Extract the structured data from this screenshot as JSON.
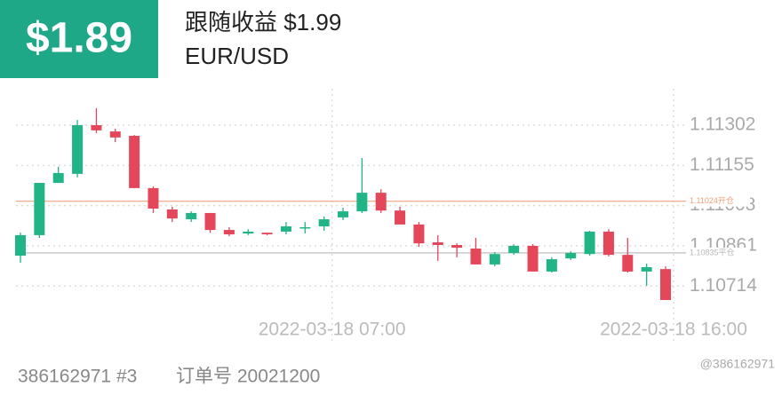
{
  "header": {
    "badge": "$1.89",
    "title": "跟随收益 $1.99",
    "pair": "EUR/USD"
  },
  "chart_data": {
    "type": "candlestick",
    "categories": [
      null,
      null,
      null,
      null,
      null,
      null,
      null,
      null,
      null,
      null,
      null,
      null,
      null,
      null,
      null,
      null,
      "2022-03-18 07:00",
      null,
      null,
      null,
      null,
      null,
      null,
      null,
      null,
      null,
      null,
      null,
      null,
      null,
      null,
      null,
      null,
      null,
      "2022-03-18 16:00"
    ],
    "open": [
      1.10825,
      1.109,
      1.11091,
      1.11124,
      1.11302,
      1.11279,
      1.11263,
      1.11072,
      1.10994,
      1.10958,
      1.10981,
      1.10919,
      1.10906,
      1.10909,
      1.10913,
      1.10926,
      1.10932,
      1.10965,
      1.10987,
      1.11055,
      1.1099,
      1.10939,
      1.10874,
      1.10864,
      1.10851,
      1.10793,
      1.10835,
      1.10861,
      1.10767,
      1.10815,
      1.10831,
      1.10913,
      1.10828,
      1.10767,
      1.10776
    ],
    "high": [
      1.10909,
      1.11091,
      1.1115,
      1.11321,
      1.11364,
      1.11289,
      1.11266,
      1.11078,
      1.11004,
      1.10987,
      1.10981,
      1.10929,
      1.10922,
      1.10909,
      1.10948,
      1.10948,
      1.10968,
      1.11,
      1.11182,
      1.11068,
      1.11004,
      1.10948,
      1.109,
      1.1087,
      1.1089,
      1.10838,
      1.10867,
      1.10867,
      1.10819,
      1.10841,
      1.10916,
      1.10922,
      1.1089,
      1.10796,
      1.10786
    ],
    "low": [
      1.10799,
      1.1089,
      1.11091,
      1.11111,
      1.11273,
      1.1124,
      1.11072,
      1.10981,
      1.10948,
      1.10948,
      1.10909,
      1.10896,
      1.109,
      1.109,
      1.10903,
      1.10906,
      1.10916,
      1.10955,
      1.10981,
      1.10981,
      1.10939,
      1.10857,
      1.10806,
      1.10819,
      1.10793,
      1.10786,
      1.10828,
      1.10767,
      1.10763,
      1.10809,
      1.10825,
      1.10822,
      1.10763,
      1.10715,
      1.10663
    ],
    "close": [
      1.109,
      1.11091,
      1.11127,
      1.11302,
      1.11283,
      1.11257,
      1.11072,
      1.10997,
      1.10961,
      1.10981,
      1.10919,
      1.10903,
      1.10913,
      1.10903,
      1.10932,
      1.10929,
      1.10958,
      1.10987,
      1.11055,
      1.1099,
      1.10939,
      1.1087,
      1.10864,
      1.10854,
      1.10793,
      1.10831,
      1.10861,
      1.10767,
      1.10812,
      1.10835,
      1.10913,
      1.10828,
      1.10767,
      1.10783,
      1.10663
    ],
    "up_color": "#21b487",
    "down_color": "#e4475a",
    "ylim": [
      1.10624,
      1.11435
    ],
    "yticks": [
      1.11302,
      1.11155,
      1.11008,
      1.10861,
      1.10714
    ],
    "grid": true,
    "reference_lines": [
      {
        "value": 1.11024,
        "label": "1.11024开仓",
        "color": "#f2a17c"
      },
      {
        "value": 1.10835,
        "label": "1.10835平仓",
        "color": "#b8b8b8"
      }
    ]
  },
  "footer": {
    "account": "386162971 #3",
    "order": "订单号 20021200",
    "watermark": "@386162971"
  }
}
